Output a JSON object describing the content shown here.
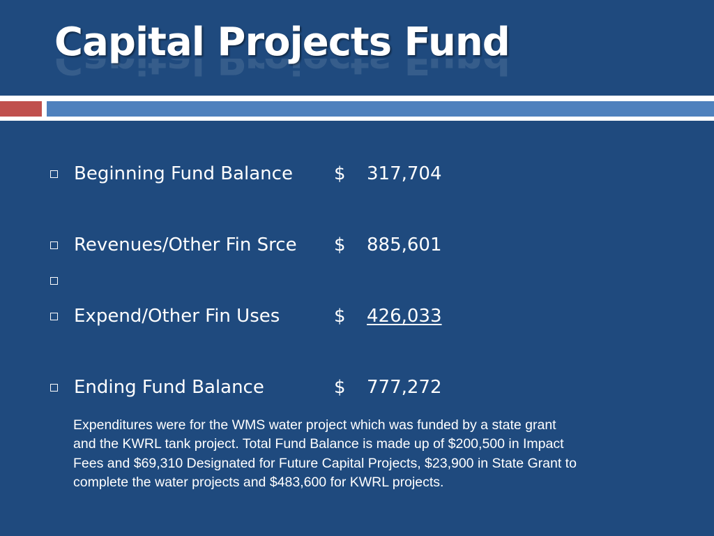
{
  "title": "Capital Projects Fund",
  "colors": {
    "background": "#1f4a7e",
    "divider_red": "#c0504d",
    "divider_blue": "#4f81bd",
    "text": "#ffffff"
  },
  "bullet_icon": "hollow-square-bullet-icon",
  "items": [
    {
      "label": "Beginning Fund Balance",
      "currency": "$",
      "value": "317,704"
    },
    {
      "label": "Revenues/Other Fin Srce",
      "currency": "$",
      "value": "885,601"
    },
    {
      "label": "",
      "currency": "",
      "value": ""
    },
    {
      "label": "Expend/Other Fin Uses",
      "currency": "$",
      "value": "426,033"
    },
    {
      "label": "Ending Fund Balance",
      "currency": "$",
      "value": "777,272"
    }
  ],
  "note": "Expenditures were for the WMS water project which was funded by a state grant and the KWRL tank project. Total Fund Balance is made up of $200,500 in Impact Fees and $69,310 Designated for Future Capital Projects, $23,900 in State Grant to complete the water projects and $483,600 for KWRL projects."
}
